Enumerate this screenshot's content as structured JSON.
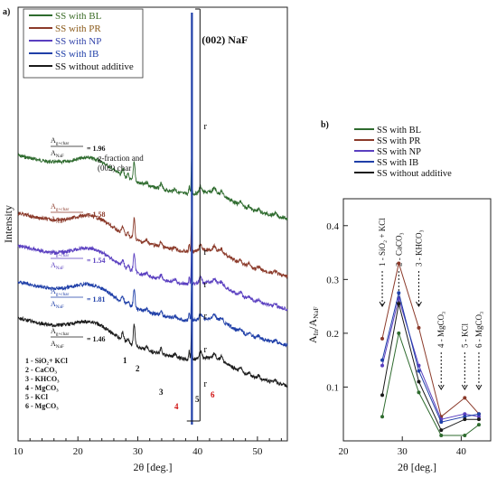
{
  "panels": {
    "a_label": "a)",
    "b_label": "b)"
  },
  "colors": {
    "bl": "#2e6b2e",
    "pr": "#8b3a2a",
    "np": "#5a3fc0",
    "ib": "#1f3fa8",
    "none": "#1a1a1a",
    "marker_red": "#d01010",
    "bl_legend_text": "#3e6e2a",
    "pr_legend_text": "#8a5a1a",
    "np_legend_text": "#3344aa",
    "ib_legend_text": "#1f3fa8",
    "none_legend_text": "#111111"
  },
  "chart_data": [
    {
      "type": "line",
      "panel": "a",
      "xlabel": "2θ [deg.]",
      "ylabel": "Intensity",
      "xlim": [
        10,
        55
      ],
      "xticks": [
        10,
        20,
        30,
        40,
        50
      ],
      "xtick_labels": [
        "10",
        "20",
        "30",
        "40",
        "50"
      ],
      "legend": [
        "SS with BL",
        "SS with  PR",
        "SS with  NP",
        "SS with  IB",
        "SS without additive"
      ],
      "peak_label": "(002) NaF",
      "annotation_gfraction": [
        "g-fraction and",
        "(002) char"
      ],
      "ratio_numerator": "A",
      "ratio_num_sub": "g+char",
      "ratio_denominator": "A",
      "ratio_den_sub": "NaF",
      "r_marker": "r",
      "series": [
        {
          "name": "SS with BL",
          "ratio": "= 1.96"
        },
        {
          "name": "SS with  PR",
          "ratio": "= 1.58"
        },
        {
          "name": "SS with  NP",
          "ratio": "= 1.54"
        },
        {
          "name": "SS with  IB",
          "ratio": "= 1.81"
        },
        {
          "name": "SS without additive",
          "ratio": "= 1.46"
        }
      ],
      "peak_markers": [
        "1",
        "2",
        "3",
        "4",
        "5",
        "6"
      ],
      "phase_list": [
        {
          "n": "1",
          "label": "SiO₂+ KCl"
        },
        {
          "n": "2",
          "label": "CaCO₃"
        },
        {
          "n": "3",
          "label": "KHCO₃"
        },
        {
          "n": "4",
          "label": "MgCO₃"
        },
        {
          "n": "5",
          "label": "KCl"
        },
        {
          "n": "6",
          "label": "MgCO₃"
        }
      ]
    },
    {
      "type": "line",
      "panel": "b",
      "xlabel": "2θ [deg.]",
      "ylabel": "A_In/A_NaF",
      "ylabel_main": "A",
      "ylabel_sub1": "In",
      "ylabel_mid": "/A",
      "ylabel_sub2": "NaF",
      "xlim": [
        20,
        45
      ],
      "ylim": [
        0,
        0.45
      ],
      "xticks": [
        20,
        30,
        40
      ],
      "xtick_labels": [
        "20",
        "30",
        "40"
      ],
      "yticks": [
        0.1,
        0.2,
        0.3,
        0.4
      ],
      "ytick_labels": [
        "0.1",
        "0.2",
        "0.3",
        "0.4"
      ],
      "x": [
        26.6,
        29.4,
        32.8,
        36.6,
        40.6,
        43.0
      ],
      "phase_labels": [
        "1 - SiO₂ + KCl",
        "2 - CaCO₃",
        "3 - KHCO₃",
        "4 - MgCO₃",
        "5 - KCl",
        "6 - MgCO₃"
      ],
      "legend": [
        "SS with BL",
        "SS with  PR",
        "SS with  NP",
        "SS with  IB",
        "SS without additive"
      ],
      "series": [
        {
          "name": "SS with BL",
          "values": [
            0.045,
            0.2,
            0.09,
            0.01,
            0.01,
            0.03
          ]
        },
        {
          "name": "SS with  PR",
          "values": [
            0.19,
            0.33,
            0.21,
            0.045,
            0.08,
            0.05
          ]
        },
        {
          "name": "SS with  NP",
          "values": [
            0.14,
            0.265,
            0.14,
            0.04,
            0.05,
            0.045
          ]
        },
        {
          "name": "SS with  IB",
          "values": [
            0.15,
            0.275,
            0.13,
            0.035,
            0.045,
            0.05
          ]
        },
        {
          "name": "SS without additive",
          "values": [
            0.085,
            0.255,
            0.11,
            0.02,
            0.04,
            0.04
          ]
        }
      ]
    }
  ]
}
